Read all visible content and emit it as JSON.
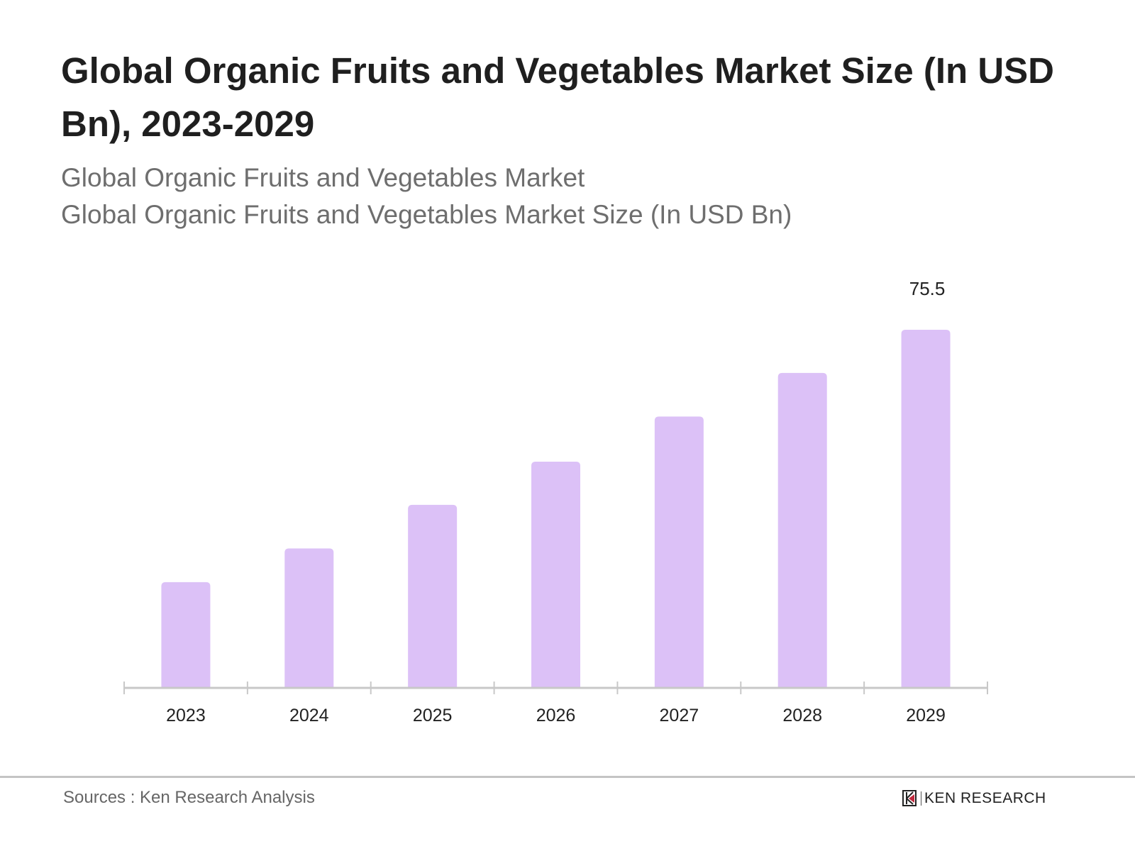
{
  "chart_data": {
    "type": "bar",
    "title": "Global Organic Fruits and Vegetables Market Size (In USD Bn), 2023-2029",
    "subtitle": [
      "Global Organic Fruits and Vegetables Market",
      "Global Organic Fruits and Vegetables Market Size (In USD Bn)"
    ],
    "categories": [
      "2023",
      "2024",
      "2025",
      "2026",
      "2027",
      "2028",
      "2029"
    ],
    "values": [
      22.3,
      29.4,
      38.6,
      47.7,
      57.2,
      66.4,
      75.5
    ],
    "data_labels": {
      "2029": "75.5"
    },
    "xlabel": "",
    "ylabel": "",
    "ylim": [
      0,
      75.5
    ],
    "grid": false,
    "bar_color": "#dcc1f7",
    "axis_color": "#c8c8c8"
  },
  "footer": {
    "source": "Sources : Ken Research Analysis",
    "logo_text": "KEN RESEARCH"
  }
}
